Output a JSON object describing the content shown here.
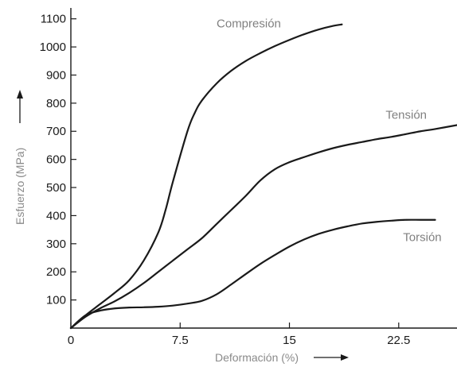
{
  "chart_data": {
    "type": "line",
    "xlabel": "Deformación (%)",
    "ylabel": "Esfuerzo (MPa)",
    "xlim": [
      0,
      26.5
    ],
    "ylim": [
      0,
      1150
    ],
    "x_ticks": [
      {
        "value": 0,
        "label": "0"
      },
      {
        "value": 7.5,
        "label": "7.5"
      },
      {
        "value": 15,
        "label": "15"
      },
      {
        "value": 22.5,
        "label": "22.5"
      }
    ],
    "y_ticks": [
      {
        "value": 100,
        "label": "100"
      },
      {
        "value": 200,
        "label": "200"
      },
      {
        "value": 300,
        "label": "300"
      },
      {
        "value": 400,
        "label": "400"
      },
      {
        "value": 500,
        "label": "500"
      },
      {
        "value": 600,
        "label": "600"
      },
      {
        "value": 700,
        "label": "700"
      },
      {
        "value": 800,
        "label": "800"
      },
      {
        "value": 900,
        "label": "900"
      },
      {
        "value": 1000,
        "label": "1000"
      },
      {
        "value": 1100,
        "label": "1100"
      }
    ],
    "grid": false,
    "series": [
      {
        "name": "Compresión",
        "color": "#1a1a1a",
        "label_at": [
          10,
          1070
        ],
        "x": [
          0,
          1,
          2,
          3,
          4,
          5,
          6,
          6.5,
          7,
          8,
          8.5,
          9,
          10,
          11,
          12,
          13,
          14,
          15,
          16,
          17,
          18,
          18.6
        ],
        "y": [
          0,
          45,
          85,
          125,
          170,
          240,
          340,
          420,
          520,
          700,
          765,
          810,
          870,
          915,
          950,
          978,
          1003,
          1025,
          1045,
          1062,
          1075,
          1080
        ]
      },
      {
        "name": "Tensión",
        "color": "#1a1a1a",
        "label_at": [
          21.6,
          745
        ],
        "x": [
          0,
          1,
          2,
          3,
          4,
          5,
          6,
          7,
          8,
          9,
          10,
          11,
          12,
          13,
          14,
          15,
          16,
          17,
          18,
          19,
          20,
          21,
          22,
          23,
          24,
          25,
          26.5
        ],
        "y": [
          0,
          40,
          70,
          95,
          125,
          160,
          200,
          240,
          280,
          320,
          370,
          420,
          470,
          525,
          565,
          590,
          608,
          625,
          640,
          652,
          662,
          672,
          680,
          690,
          700,
          708,
          722
        ]
      },
      {
        "name": "Torsión",
        "color": "#1a1a1a",
        "label_at": [
          22.8,
          310
        ],
        "x": [
          0,
          1,
          2,
          3,
          4,
          5,
          6,
          7,
          8,
          9,
          10,
          11,
          12,
          13,
          14,
          15,
          16,
          17,
          18,
          19,
          20,
          21,
          22,
          23,
          24,
          25
        ],
        "y": [
          0,
          45,
          62,
          70,
          73,
          74,
          76,
          80,
          87,
          97,
          120,
          155,
          192,
          228,
          260,
          290,
          315,
          335,
          350,
          362,
          372,
          378,
          382,
          385,
          385,
          385
        ]
      }
    ]
  }
}
